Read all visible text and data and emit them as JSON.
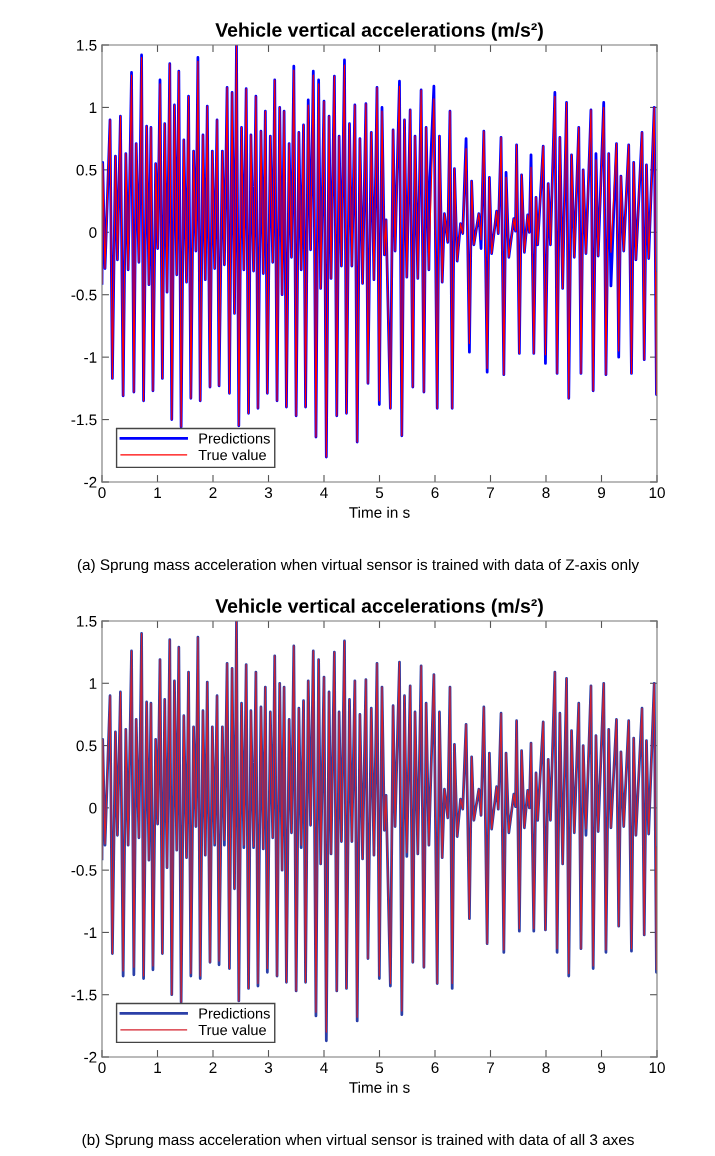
{
  "chart_data": [
    {
      "type": "line",
      "title": "Vehicle vertical accelerations (m/s²)",
      "xlabel": "Time in s",
      "annotations": [
        "(a) Sprung mass acceleration when virtual sensor is trained with data of Z-axis only"
      ],
      "legend": "bottom left",
      "xlim": [
        0,
        10
      ],
      "ylim": [
        -2,
        1.5
      ],
      "xticks": [
        0,
        1,
        2,
        3,
        4,
        5,
        6,
        7,
        8,
        9,
        10
      ],
      "yticks": [
        -2,
        -1.5,
        -1,
        -0.5,
        0,
        0.5,
        1,
        1.5
      ],
      "x": [
        0.0,
        0.012,
        0.054,
        0.145,
        0.187,
        0.242,
        0.278,
        0.332,
        0.381,
        0.429,
        0.471,
        0.532,
        0.574,
        0.616,
        0.665,
        0.713,
        0.749,
        0.804,
        0.846,
        0.882,
        0.918,
        0.967,
        1.003,
        1.045,
        1.088,
        1.13,
        1.172,
        1.221,
        1.257,
        1.305,
        1.347,
        1.384,
        1.426,
        1.474,
        1.523,
        1.559,
        1.601,
        1.65,
        1.692,
        1.728,
        1.77,
        1.819,
        1.861,
        1.897,
        1.946,
        1.988,
        2.03,
        2.073,
        2.109,
        2.169,
        2.205,
        2.254,
        2.296,
        2.344,
        2.387,
        2.423,
        2.465,
        2.514,
        2.556,
        2.598,
        2.64,
        2.683,
        2.731,
        2.773,
        2.81,
        2.864,
        2.906,
        2.943,
        2.979,
        3.033,
        3.076,
        3.112,
        3.154,
        3.202,
        3.245,
        3.281,
        3.323,
        3.372,
        3.414,
        3.456,
        3.498,
        3.547,
        3.589,
        3.631,
        3.668,
        3.716,
        3.758,
        3.807,
        3.855,
        3.903,
        3.94,
        4.0,
        4.042,
        4.091,
        4.127,
        4.187,
        4.23,
        4.272,
        4.314,
        4.369,
        4.405,
        4.459,
        4.502,
        4.556,
        4.598,
        4.647,
        4.695,
        4.755,
        4.792,
        4.852,
        4.9,
        4.955,
        4.997,
        5.045,
        5.088,
        5.118,
        5.196,
        5.245,
        5.281,
        5.36,
        5.402,
        5.45,
        5.492,
        5.553,
        5.6,
        5.64,
        5.69,
        5.75,
        5.8,
        5.84,
        5.89,
        5.91,
        5.98,
        6.04,
        6.08,
        6.13,
        6.17,
        6.23,
        6.27,
        6.31,
        6.35,
        6.4,
        6.46,
        6.5,
        6.56,
        6.62,
        6.66,
        6.7,
        6.79,
        6.83,
        6.88,
        6.94,
        6.98,
        7.02,
        7.11,
        7.14,
        7.19,
        7.24,
        7.28,
        7.33,
        7.42,
        7.45,
        7.47,
        7.52,
        7.56,
        7.61,
        7.67,
        7.7,
        7.73,
        7.78,
        7.82,
        7.85,
        7.95,
        7.99,
        8.04,
        8.08,
        8.16,
        8.2,
        8.25,
        8.3,
        8.37,
        8.41,
        8.46,
        8.51,
        8.59,
        8.63,
        8.67,
        8.72,
        8.81,
        8.85,
        8.9,
        8.94,
        9.04,
        9.08,
        9.13,
        9.17,
        9.27,
        9.31,
        9.35,
        9.4,
        9.49,
        9.54,
        9.58,
        9.62,
        9.73,
        9.77,
        9.81,
        9.85,
        9.95,
        9.99,
        10.0
      ],
      "series": [
        {
          "name": "Predictions",
          "color": "#0000ff",
          "values": [
            -0.41,
            0.56,
            -0.29,
            0.9,
            -1.17,
            0.61,
            -0.22,
            0.93,
            -1.31,
            0.63,
            -0.3,
            1.28,
            -1.28,
            0.71,
            -0.24,
            1.42,
            -1.35,
            0.85,
            -0.42,
            0.84,
            -1.27,
            0.55,
            -0.13,
            1.22,
            -1.17,
            0.87,
            -0.48,
            1.35,
            -1.5,
            1.02,
            -0.34,
            1.29,
            -1.56,
            0.74,
            -0.4,
            1.09,
            -1.33,
            0.65,
            -0.15,
            1.4,
            -1.35,
            0.78,
            -0.38,
            1.01,
            -1.24,
            0.65,
            -0.29,
            0.9,
            -1.23,
            0.65,
            -0.26,
            1.16,
            -1.29,
            1.12,
            -0.65,
            1.5,
            -1.55,
            0.84,
            -0.3,
            1.15,
            -1.45,
            0.78,
            -0.31,
            1.09,
            -1.41,
            0.81,
            -0.33,
            0.97,
            -1.29,
            0.77,
            -0.24,
            1.22,
            -1.35,
            1.0,
            -0.5,
            0.97,
            -1.4,
            0.71,
            -0.2,
            1.33,
            -1.47,
            0.8,
            -0.3,
            0.86,
            -1.4,
            1.06,
            -0.14,
            1.29,
            -1.64,
            1.22,
            -0.45,
            1.05,
            -1.8,
            0.93,
            -0.37,
            1.25,
            -1.47,
            0.77,
            -0.27,
            1.38,
            -1.45,
            0.87,
            -0.27,
            1.02,
            -1.68,
            0.75,
            -0.41,
            1.03,
            -1.21,
            0.8,
            -0.38,
            1.16,
            -1.38,
            1.0,
            -0.18,
            0.1,
            -1.41,
            0.82,
            -0.15,
            1.21,
            -1.63,
            0.9,
            -0.36,
            0.98,
            -1.24,
            0.77,
            -0.37,
            1.14,
            -1.28,
            0.84,
            -0.3,
            0.44,
            1.17,
            -1.41,
            0.77,
            -0.4,
            0.15,
            -0.08,
            0.97,
            -1.41,
            0.51,
            -0.23,
            0.07,
            -0.01,
            0.75,
            -0.96,
            0.41,
            -0.1,
            0.15,
            -0.13,
            0.81,
            -1.12,
            0.44,
            -0.17,
            0.17,
            -0.01,
            0.76,
            -1.14,
            0.48,
            -0.2,
            0.11,
            0.01,
            0.7,
            -0.97,
            0.46,
            -0.16,
            0.14,
            0.0,
            0.62,
            -0.97,
            0.28,
            -0.1,
            0.69,
            -1.05,
            0.39,
            -0.1,
            1.12,
            -1.13,
            0.76,
            -0.45,
            1.04,
            -1.33,
            0.62,
            -0.2,
            0.84,
            -1.13,
            0.5,
            -0.17,
            0.98,
            -1.27,
            0.63,
            -0.19,
            1.04,
            -1.14,
            0.63,
            -0.43,
            0.71,
            -1.0,
            0.45,
            -0.15,
            0.7,
            -1.13,
            0.56,
            -0.22,
            0.8,
            -1.02,
            0.54,
            -0.21,
            1.0,
            -1.3,
            -0.32
          ]
        },
        {
          "name": "True value",
          "color": "#ff0000",
          "values": [
            -0.41,
            0.55,
            -0.29,
            0.9,
            -1.17,
            0.61,
            -0.22,
            0.93,
            -1.31,
            0.63,
            -0.3,
            1.26,
            -1.28,
            0.71,
            -0.24,
            1.4,
            -1.35,
            0.85,
            -0.42,
            0.84,
            -1.27,
            0.55,
            -0.13,
            1.19,
            -1.17,
            0.87,
            -0.48,
            1.35,
            -1.5,
            1.02,
            -0.34,
            1.29,
            -1.56,
            0.74,
            -0.4,
            1.09,
            -1.33,
            0.65,
            -0.15,
            1.37,
            -1.35,
            0.78,
            -0.38,
            1.01,
            -1.24,
            0.65,
            -0.29,
            0.9,
            -1.23,
            0.65,
            -0.26,
            1.16,
            -1.29,
            1.12,
            -0.65,
            1.5,
            -1.55,
            0.84,
            -0.3,
            1.15,
            -1.45,
            0.78,
            -0.31,
            1.09,
            -1.41,
            0.81,
            -0.33,
            0.97,
            -1.29,
            0.77,
            -0.24,
            1.22,
            -1.35,
            1.0,
            -0.5,
            0.97,
            -1.4,
            0.71,
            -0.2,
            1.3,
            -1.47,
            0.8,
            -0.3,
            0.86,
            -1.4,
            1.02,
            -0.14,
            1.26,
            -1.64,
            1.19,
            -0.45,
            1.05,
            -1.8,
            0.93,
            -0.37,
            1.25,
            -1.47,
            0.77,
            -0.27,
            1.34,
            -1.45,
            0.87,
            -0.27,
            1.02,
            -1.68,
            0.75,
            -0.41,
            1.03,
            -1.21,
            0.8,
            -0.38,
            1.16,
            -1.35,
            0.97,
            -0.18,
            0.1,
            -1.41,
            0.82,
            -0.15,
            1.17,
            -1.63,
            0.9,
            -0.36,
            0.98,
            -1.24,
            0.77,
            -0.37,
            1.14,
            -1.28,
            0.84,
            -0.3,
            0.02,
            1.07,
            -1.41,
            0.77,
            -0.4,
            0.15,
            -0.08,
            0.97,
            -1.41,
            0.51,
            -0.23,
            0.07,
            -0.01,
            0.67,
            -0.89,
            0.41,
            -0.1,
            0.15,
            -0.06,
            0.81,
            -1.09,
            0.44,
            -0.17,
            0.17,
            -0.01,
            0.76,
            -1.14,
            0.44,
            -0.2,
            0.11,
            0.01,
            0.7,
            -0.97,
            0.46,
            -0.16,
            0.14,
            0.0,
            0.52,
            -0.97,
            0.28,
            -0.1,
            0.69,
            -0.98,
            0.39,
            -0.1,
            1.09,
            -1.13,
            0.76,
            -0.45,
            1.04,
            -1.33,
            0.62,
            -0.2,
            0.84,
            -1.13,
            0.5,
            -0.17,
            0.98,
            -1.27,
            0.58,
            -0.19,
            1.0,
            -1.14,
            0.63,
            -0.16,
            0.71,
            -0.95,
            0.45,
            -0.15,
            0.7,
            -1.13,
            0.56,
            -0.22,
            0.8,
            -1.02,
            0.54,
            -0.21,
            1.0,
            -1.3,
            -0.32
          ]
        }
      ]
    },
    {
      "type": "line",
      "title": "Vehicle vertical accelerations (m/s²)",
      "xlabel": "Time in s",
      "annotations": [
        "(b) Sprung mass acceleration when virtual sensor is trained with data of all 3 axes"
      ],
      "legend": "bottom left",
      "xlim": [
        0,
        10
      ],
      "ylim": [
        -2,
        1.5
      ],
      "xticks": [
        0,
        1,
        2,
        3,
        4,
        5,
        6,
        7,
        8,
        9,
        10
      ],
      "yticks": [
        -2,
        -1.5,
        -1,
        -0.5,
        0,
        0.5,
        1,
        1.5
      ],
      "x": [
        0.0,
        0.012,
        0.054,
        0.145,
        0.187,
        0.242,
        0.278,
        0.332,
        0.381,
        0.429,
        0.471,
        0.532,
        0.574,
        0.616,
        0.665,
        0.713,
        0.749,
        0.804,
        0.846,
        0.882,
        0.918,
        0.967,
        1.003,
        1.045,
        1.088,
        1.13,
        1.172,
        1.221,
        1.257,
        1.305,
        1.347,
        1.384,
        1.426,
        1.474,
        1.523,
        1.559,
        1.601,
        1.65,
        1.692,
        1.728,
        1.77,
        1.819,
        1.861,
        1.897,
        1.946,
        1.988,
        2.03,
        2.073,
        2.109,
        2.169,
        2.205,
        2.254,
        2.296,
        2.344,
        2.387,
        2.423,
        2.465,
        2.514,
        2.556,
        2.598,
        2.64,
        2.683,
        2.731,
        2.773,
        2.81,
        2.864,
        2.906,
        2.943,
        2.979,
        3.033,
        3.076,
        3.112,
        3.154,
        3.202,
        3.245,
        3.281,
        3.323,
        3.372,
        3.414,
        3.456,
        3.498,
        3.547,
        3.589,
        3.631,
        3.668,
        3.716,
        3.758,
        3.807,
        3.855,
        3.903,
        3.94,
        4.0,
        4.042,
        4.091,
        4.127,
        4.187,
        4.23,
        4.272,
        4.314,
        4.369,
        4.405,
        4.459,
        4.502,
        4.556,
        4.598,
        4.647,
        4.695,
        4.755,
        4.792,
        4.852,
        4.9,
        4.955,
        4.997,
        5.045,
        5.088,
        5.118,
        5.196,
        5.245,
        5.281,
        5.36,
        5.402,
        5.45,
        5.492,
        5.553,
        5.6,
        5.64,
        5.69,
        5.75,
        5.8,
        5.84,
        5.89,
        5.91,
        5.98,
        6.04,
        6.08,
        6.13,
        6.17,
        6.23,
        6.27,
        6.31,
        6.35,
        6.4,
        6.46,
        6.5,
        6.56,
        6.62,
        6.66,
        6.7,
        6.79,
        6.83,
        6.88,
        6.94,
        6.98,
        7.02,
        7.11,
        7.14,
        7.19,
        7.24,
        7.28,
        7.33,
        7.42,
        7.45,
        7.47,
        7.52,
        7.56,
        7.61,
        7.67,
        7.7,
        7.73,
        7.78,
        7.82,
        7.85,
        7.95,
        7.99,
        8.04,
        8.08,
        8.16,
        8.2,
        8.25,
        8.3,
        8.37,
        8.41,
        8.46,
        8.51,
        8.59,
        8.63,
        8.67,
        8.72,
        8.81,
        8.85,
        8.9,
        8.94,
        9.04,
        9.08,
        9.13,
        9.17,
        9.27,
        9.31,
        9.35,
        9.4,
        9.49,
        9.54,
        9.58,
        9.62,
        9.73,
        9.77,
        9.81,
        9.85,
        9.95,
        9.99,
        10.0
      ],
      "series": [
        {
          "name": "Predictions",
          "color": "#2b3fa8",
          "values": [
            -0.41,
            0.55,
            -0.3,
            0.9,
            -1.17,
            0.61,
            -0.22,
            0.93,
            -1.35,
            0.63,
            -0.3,
            1.26,
            -1.34,
            0.71,
            -0.24,
            1.4,
            -1.37,
            0.85,
            -0.42,
            0.84,
            -1.3,
            0.55,
            -0.13,
            1.19,
            -1.17,
            0.87,
            -0.48,
            1.35,
            -1.5,
            1.02,
            -0.34,
            1.29,
            -1.56,
            0.74,
            -0.4,
            1.09,
            -1.35,
            0.65,
            -0.15,
            1.37,
            -1.37,
            0.78,
            -0.38,
            1.01,
            -1.24,
            0.65,
            -0.3,
            0.9,
            -1.26,
            0.65,
            -0.3,
            1.16,
            -1.29,
            1.12,
            -0.65,
            1.5,
            -1.55,
            0.84,
            -0.32,
            1.15,
            -1.45,
            0.78,
            -0.32,
            1.09,
            -1.43,
            0.81,
            -0.33,
            0.97,
            -1.32,
            0.77,
            -0.24,
            1.22,
            -1.35,
            1.0,
            -0.5,
            0.97,
            -1.4,
            0.71,
            -0.2,
            1.3,
            -1.47,
            0.8,
            -0.32,
            0.86,
            -1.4,
            1.02,
            -0.14,
            1.26,
            -1.67,
            1.19,
            -0.45,
            1.05,
            -1.87,
            0.93,
            -0.37,
            1.25,
            -1.47,
            0.77,
            -0.27,
            1.34,
            -1.45,
            0.87,
            -0.27,
            1.02,
            -1.71,
            0.75,
            -0.41,
            1.03,
            -1.21,
            0.8,
            -0.38,
            1.16,
            -1.37,
            0.97,
            -0.18,
            0.1,
            -1.43,
            0.82,
            -0.15,
            1.17,
            -1.66,
            0.9,
            -0.39,
            0.98,
            -1.24,
            0.77,
            -0.37,
            1.14,
            -1.28,
            0.84,
            -0.3,
            0.02,
            1.07,
            -1.41,
            0.77,
            -0.4,
            0.15,
            -0.08,
            0.97,
            -1.45,
            0.51,
            -0.23,
            0.07,
            -0.01,
            0.67,
            -0.89,
            0.41,
            -0.1,
            0.15,
            -0.06,
            0.81,
            -1.09,
            0.44,
            -0.17,
            0.17,
            -0.01,
            0.76,
            -1.16,
            0.44,
            -0.2,
            0.11,
            0.01,
            0.7,
            -0.99,
            0.46,
            -0.16,
            0.14,
            0.0,
            0.52,
            -0.99,
            0.28,
            -0.1,
            0.69,
            -0.98,
            0.39,
            -0.1,
            1.09,
            -1.16,
            0.76,
            -0.45,
            1.04,
            -1.35,
            0.62,
            -0.2,
            0.84,
            -1.13,
            0.5,
            -0.22,
            0.98,
            -1.29,
            0.58,
            -0.19,
            1.0,
            -1.16,
            0.63,
            -0.16,
            0.71,
            -0.95,
            0.45,
            -0.15,
            0.7,
            -1.15,
            0.56,
            -0.22,
            0.8,
            -1.02,
            0.54,
            -0.21,
            1.0,
            -1.32,
            -0.32
          ]
        },
        {
          "name": "True value",
          "color": "#d4202c",
          "values": [
            -0.41,
            0.55,
            -0.29,
            0.9,
            -1.17,
            0.61,
            -0.22,
            0.93,
            -1.31,
            0.63,
            -0.3,
            1.26,
            -1.28,
            0.71,
            -0.24,
            1.4,
            -1.35,
            0.85,
            -0.42,
            0.84,
            -1.27,
            0.55,
            -0.13,
            1.19,
            -1.17,
            0.87,
            -0.48,
            1.35,
            -1.5,
            1.02,
            -0.34,
            1.29,
            -1.56,
            0.74,
            -0.4,
            1.09,
            -1.33,
            0.65,
            -0.15,
            1.37,
            -1.35,
            0.78,
            -0.38,
            1.01,
            -1.24,
            0.65,
            -0.29,
            0.9,
            -1.23,
            0.65,
            -0.26,
            1.16,
            -1.29,
            1.12,
            -0.65,
            1.5,
            -1.55,
            0.84,
            -0.3,
            1.15,
            -1.45,
            0.78,
            -0.31,
            1.09,
            -1.41,
            0.81,
            -0.33,
            0.97,
            -1.29,
            0.77,
            -0.24,
            1.22,
            -1.35,
            1.0,
            -0.5,
            0.97,
            -1.4,
            0.71,
            -0.2,
            1.3,
            -1.47,
            0.8,
            -0.3,
            0.86,
            -1.4,
            1.02,
            -0.14,
            1.26,
            -1.64,
            1.19,
            -0.45,
            1.05,
            -1.8,
            0.93,
            -0.37,
            1.25,
            -1.47,
            0.77,
            -0.27,
            1.34,
            -1.45,
            0.87,
            -0.27,
            1.02,
            -1.68,
            0.75,
            -0.41,
            1.03,
            -1.21,
            0.8,
            -0.38,
            1.16,
            -1.35,
            0.97,
            -0.18,
            0.1,
            -1.41,
            0.82,
            -0.15,
            1.17,
            -1.63,
            0.9,
            -0.36,
            0.98,
            -1.24,
            0.77,
            -0.37,
            1.14,
            -1.28,
            0.84,
            -0.3,
            0.02,
            1.07,
            -1.41,
            0.77,
            -0.4,
            0.15,
            -0.08,
            0.97,
            -1.41,
            0.51,
            -0.23,
            0.07,
            -0.01,
            0.67,
            -0.89,
            0.41,
            -0.1,
            0.15,
            -0.06,
            0.81,
            -1.09,
            0.44,
            -0.17,
            0.17,
            -0.01,
            0.76,
            -1.14,
            0.44,
            -0.2,
            0.11,
            0.01,
            0.7,
            -0.97,
            0.46,
            -0.16,
            0.14,
            0.0,
            0.52,
            -0.97,
            0.28,
            -0.1,
            0.69,
            -0.98,
            0.39,
            -0.1,
            1.09,
            -1.13,
            0.76,
            -0.45,
            1.04,
            -1.33,
            0.62,
            -0.2,
            0.84,
            -1.13,
            0.5,
            -0.17,
            0.98,
            -1.27,
            0.58,
            -0.19,
            1.0,
            -1.14,
            0.63,
            -0.16,
            0.71,
            -0.95,
            0.45,
            -0.15,
            0.7,
            -1.13,
            0.56,
            -0.22,
            0.8,
            -1.02,
            0.54,
            -0.21,
            1.0,
            -1.3,
            -0.32
          ]
        }
      ]
    }
  ]
}
